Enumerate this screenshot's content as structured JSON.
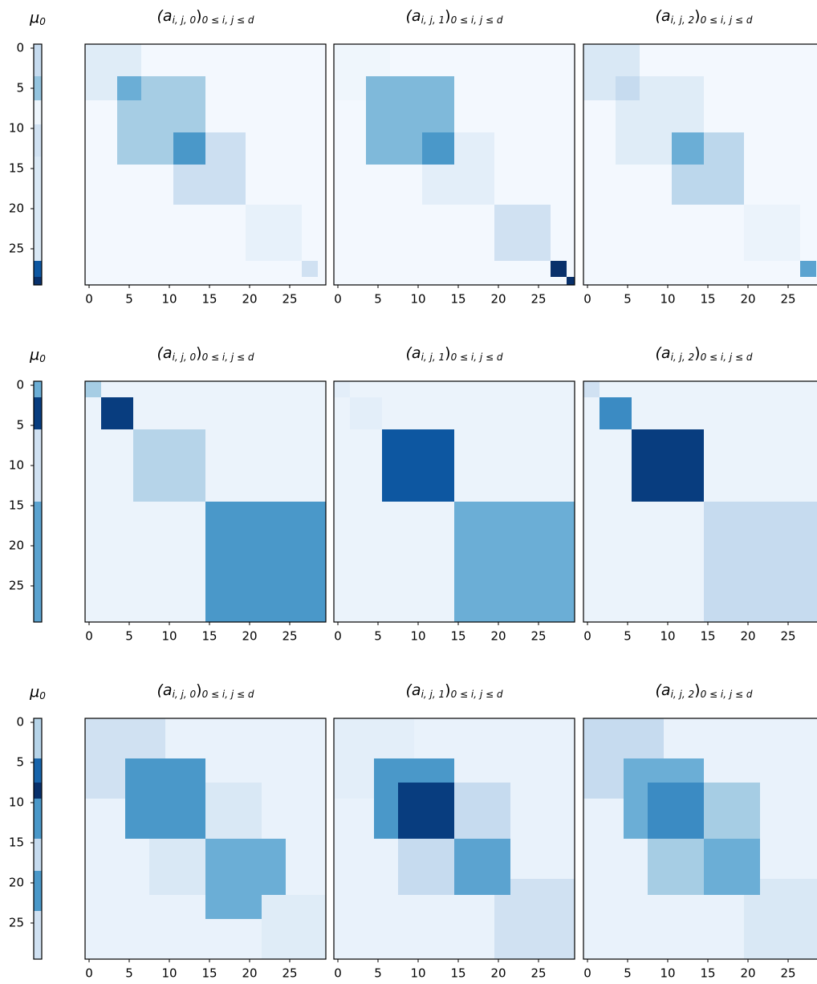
{
  "chart_data": [
    {
      "type": "strip",
      "title_parts": [
        "μ",
        "0"
      ],
      "ylim": [
        -0.5,
        29.5
      ],
      "yticks": [
        0,
        5,
        10,
        15,
        20,
        25
      ],
      "values": [
        0.25,
        0.25,
        0.25,
        0.25,
        0.4,
        0.4,
        0.4,
        0.05,
        0.05,
        0.05,
        0.2,
        0.2,
        0.2,
        0.2,
        0.15,
        0.15,
        0.15,
        0.15,
        0.15,
        0.15,
        0.15,
        0.15,
        0.15,
        0.15,
        0.15,
        0.15,
        0.15,
        0.85,
        0.85,
        1.0
      ]
    },
    {
      "type": "heatmap",
      "title_parts": [
        "(a",
        "i, j, 0",
        ")",
        "0 ≤ i, j ≤ d"
      ],
      "xlim": [
        -0.5,
        29.5
      ],
      "xticks": [
        0,
        5,
        10,
        15,
        20,
        25
      ],
      "blocks": [
        {
          "rows": [
            0,
            29
          ],
          "cols": [
            0,
            29
          ],
          "value": 0.02
        },
        {
          "rows": [
            0,
            6
          ],
          "cols": [
            0,
            6
          ],
          "value": 0.12
        },
        {
          "rows": [
            4,
            14
          ],
          "cols": [
            4,
            14
          ],
          "value": 0.35
        },
        {
          "rows": [
            4,
            6
          ],
          "cols": [
            4,
            6
          ],
          "value": 0.5
        },
        {
          "rows": [
            11,
            19
          ],
          "cols": [
            11,
            19
          ],
          "value": 0.22
        },
        {
          "rows": [
            11,
            14
          ],
          "cols": [
            11,
            14
          ],
          "value": 0.6
        },
        {
          "rows": [
            20,
            26
          ],
          "cols": [
            20,
            26
          ],
          "value": 0.08
        },
        {
          "rows": [
            27,
            28
          ],
          "cols": [
            27,
            28
          ],
          "value": 0.2
        }
      ]
    },
    {
      "type": "heatmap",
      "title_parts": [
        "(a",
        "i, j, 1",
        ")",
        "0 ≤ i, j ≤ d"
      ],
      "xlim": [
        -0.5,
        29.5
      ],
      "xticks": [
        0,
        5,
        10,
        15,
        20,
        25
      ],
      "blocks": [
        {
          "rows": [
            0,
            29
          ],
          "cols": [
            0,
            29
          ],
          "value": 0.02
        },
        {
          "rows": [
            0,
            6
          ],
          "cols": [
            0,
            6
          ],
          "value": 0.04
        },
        {
          "rows": [
            4,
            14
          ],
          "cols": [
            4,
            14
          ],
          "value": 0.45
        },
        {
          "rows": [
            11,
            19
          ],
          "cols": [
            11,
            19
          ],
          "value": 0.1
        },
        {
          "rows": [
            11,
            14
          ],
          "cols": [
            11,
            14
          ],
          "value": 0.6
        },
        {
          "rows": [
            20,
            26
          ],
          "cols": [
            20,
            26
          ],
          "value": 0.2
        },
        {
          "rows": [
            27,
            28
          ],
          "cols": [
            27,
            28
          ],
          "value": 1.0
        },
        {
          "rows": [
            29,
            29
          ],
          "cols": [
            29,
            29
          ],
          "value": 1.0
        }
      ]
    },
    {
      "type": "heatmap",
      "title_parts": [
        "(a",
        "i, j, 2",
        ")",
        "0 ≤ i, j ≤ d"
      ],
      "xlim": [
        -0.5,
        29.5
      ],
      "xticks": [
        0,
        5,
        10,
        15,
        20,
        25
      ],
      "blocks": [
        {
          "rows": [
            0,
            29
          ],
          "cols": [
            0,
            29
          ],
          "value": 0.02
        },
        {
          "rows": [
            0,
            6
          ],
          "cols": [
            0,
            6
          ],
          "value": 0.15
        },
        {
          "rows": [
            4,
            14
          ],
          "cols": [
            4,
            14
          ],
          "value": 0.12
        },
        {
          "rows": [
            4,
            6
          ],
          "cols": [
            4,
            6
          ],
          "value": 0.25
        },
        {
          "rows": [
            11,
            19
          ],
          "cols": [
            11,
            19
          ],
          "value": 0.28
        },
        {
          "rows": [
            11,
            14
          ],
          "cols": [
            11,
            14
          ],
          "value": 0.5
        },
        {
          "rows": [
            20,
            26
          ],
          "cols": [
            20,
            26
          ],
          "value": 0.06
        },
        {
          "rows": [
            27,
            28
          ],
          "cols": [
            27,
            28
          ],
          "value": 0.55
        }
      ]
    },
    {
      "type": "strip",
      "title_parts": [
        "μ",
        "0"
      ],
      "ylim": [
        -0.5,
        29.5
      ],
      "yticks": [
        0,
        5,
        10,
        15,
        20,
        25
      ],
      "values": [
        0.5,
        0.5,
        0.95,
        0.95,
        0.95,
        0.95,
        0.2,
        0.2,
        0.2,
        0.2,
        0.2,
        0.2,
        0.2,
        0.2,
        0.2,
        0.55,
        0.55,
        0.55,
        0.55,
        0.55,
        0.55,
        0.55,
        0.55,
        0.55,
        0.55,
        0.55,
        0.55,
        0.55,
        0.55,
        0.55
      ]
    },
    {
      "type": "heatmap",
      "title_parts": [
        "(a",
        "i, j, 0",
        ")",
        "0 ≤ i, j ≤ d"
      ],
      "xlim": [
        -0.5,
        29.5
      ],
      "xticks": [
        0,
        5,
        10,
        15,
        20,
        25
      ],
      "blocks": [
        {
          "rows": [
            0,
            29
          ],
          "cols": [
            0,
            29
          ],
          "value": 0.06
        },
        {
          "rows": [
            0,
            1
          ],
          "cols": [
            0,
            1
          ],
          "value": 0.35
        },
        {
          "rows": [
            2,
            5
          ],
          "cols": [
            2,
            5
          ],
          "value": 0.95
        },
        {
          "rows": [
            6,
            14
          ],
          "cols": [
            6,
            14
          ],
          "value": 0.3
        },
        {
          "rows": [
            15,
            29
          ],
          "cols": [
            15,
            29
          ],
          "value": 0.6
        }
      ]
    },
    {
      "type": "heatmap",
      "title_parts": [
        "(a",
        "i, j, 1",
        ")",
        "0 ≤ i, j ≤ d"
      ],
      "xlim": [
        -0.5,
        29.5
      ],
      "xticks": [
        0,
        5,
        10,
        15,
        20,
        25
      ],
      "blocks": [
        {
          "rows": [
            0,
            29
          ],
          "cols": [
            0,
            29
          ],
          "value": 0.06
        },
        {
          "rows": [
            0,
            1
          ],
          "cols": [
            0,
            1
          ],
          "value": 0.1
        },
        {
          "rows": [
            2,
            5
          ],
          "cols": [
            2,
            5
          ],
          "value": 0.1
        },
        {
          "rows": [
            6,
            14
          ],
          "cols": [
            6,
            14
          ],
          "value": 0.85
        },
        {
          "rows": [
            15,
            29
          ],
          "cols": [
            15,
            29
          ],
          "value": 0.5
        }
      ]
    },
    {
      "type": "heatmap",
      "title_parts": [
        "(a",
        "i, j, 2",
        ")",
        "0 ≤ i, j ≤ d"
      ],
      "xlim": [
        -0.5,
        29.5
      ],
      "xticks": [
        0,
        5,
        10,
        15,
        20,
        25
      ],
      "blocks": [
        {
          "rows": [
            0,
            29
          ],
          "cols": [
            0,
            29
          ],
          "value": 0.06
        },
        {
          "rows": [
            0,
            1
          ],
          "cols": [
            0,
            1
          ],
          "value": 0.2
        },
        {
          "rows": [
            2,
            5
          ],
          "cols": [
            2,
            5
          ],
          "value": 0.65
        },
        {
          "rows": [
            6,
            14
          ],
          "cols": [
            6,
            14
          ],
          "value": 0.95
        },
        {
          "rows": [
            15,
            29
          ],
          "cols": [
            15,
            29
          ],
          "value": 0.25
        }
      ]
    },
    {
      "type": "strip",
      "title_parts": [
        "μ",
        "0"
      ],
      "ylim": [
        -0.5,
        29.5
      ],
      "yticks": [
        0,
        5,
        10,
        15,
        20,
        25
      ],
      "values": [
        0.3,
        0.3,
        0.3,
        0.3,
        0.3,
        0.8,
        0.8,
        0.8,
        1.0,
        1.0,
        0.6,
        0.6,
        0.6,
        0.6,
        0.6,
        0.25,
        0.25,
        0.25,
        0.25,
        0.6,
        0.6,
        0.6,
        0.6,
        0.6,
        0.2,
        0.2,
        0.2,
        0.2,
        0.2,
        0.2
      ]
    },
    {
      "type": "heatmap",
      "title_parts": [
        "(a",
        "i, j, 0",
        ")",
        "0 ≤ i, j ≤ d"
      ],
      "xlim": [
        -0.5,
        29.5
      ],
      "xticks": [
        0,
        5,
        10,
        15,
        20,
        25
      ],
      "blocks": [
        {
          "rows": [
            0,
            29
          ],
          "cols": [
            0,
            29
          ],
          "value": 0.07
        },
        {
          "rows": [
            0,
            9
          ],
          "cols": [
            0,
            9
          ],
          "value": 0.2
        },
        {
          "rows": [
            5,
            14
          ],
          "cols": [
            5,
            14
          ],
          "value": 0.6
        },
        {
          "rows": [
            8,
            14
          ],
          "cols": [
            15,
            21
          ],
          "value": 0.15
        },
        {
          "rows": [
            15,
            21
          ],
          "cols": [
            8,
            14
          ],
          "value": 0.15
        },
        {
          "rows": [
            15,
            24
          ],
          "cols": [
            15,
            24
          ],
          "value": 0.5
        },
        {
          "rows": [
            22,
            29
          ],
          "cols": [
            22,
            29
          ],
          "value": 0.12
        }
      ]
    },
    {
      "type": "heatmap",
      "title_parts": [
        "(a",
        "i, j, 1",
        ")",
        "0 ≤ i, j ≤ d"
      ],
      "xlim": [
        -0.5,
        29.5
      ],
      "xticks": [
        0,
        5,
        10,
        15,
        20,
        25
      ],
      "blocks": [
        {
          "rows": [
            0,
            29
          ],
          "cols": [
            0,
            29
          ],
          "value": 0.07
        },
        {
          "rows": [
            0,
            9
          ],
          "cols": [
            0,
            9
          ],
          "value": 0.1
        },
        {
          "rows": [
            5,
            14
          ],
          "cols": [
            5,
            14
          ],
          "value": 0.6
        },
        {
          "rows": [
            8,
            14
          ],
          "cols": [
            8,
            14
          ],
          "value": 0.95
        },
        {
          "rows": [
            8,
            14
          ],
          "cols": [
            15,
            21
          ],
          "value": 0.25
        },
        {
          "rows": [
            15,
            21
          ],
          "cols": [
            8,
            14
          ],
          "value": 0.25
        },
        {
          "rows": [
            15,
            21
          ],
          "cols": [
            15,
            21
          ],
          "value": 0.55
        },
        {
          "rows": [
            22,
            29
          ],
          "cols": [
            20,
            29
          ],
          "value": 0.2
        },
        {
          "rows": [
            20,
            29
          ],
          "cols": [
            22,
            29
          ],
          "value": 0.2
        }
      ]
    },
    {
      "type": "heatmap",
      "title_parts": [
        "(a",
        "i, j, 2",
        ")",
        "0 ≤ i, j ≤ d"
      ],
      "xlim": [
        -0.5,
        29.5
      ],
      "xticks": [
        0,
        5,
        10,
        15,
        20,
        25
      ],
      "blocks": [
        {
          "rows": [
            0,
            29
          ],
          "cols": [
            0,
            29
          ],
          "value": 0.07
        },
        {
          "rows": [
            0,
            9
          ],
          "cols": [
            0,
            9
          ],
          "value": 0.25
        },
        {
          "rows": [
            5,
            14
          ],
          "cols": [
            5,
            14
          ],
          "value": 0.5
        },
        {
          "rows": [
            8,
            14
          ],
          "cols": [
            8,
            14
          ],
          "value": 0.65
        },
        {
          "rows": [
            8,
            14
          ],
          "cols": [
            15,
            21
          ],
          "value": 0.35
        },
        {
          "rows": [
            15,
            21
          ],
          "cols": [
            8,
            14
          ],
          "value": 0.35
        },
        {
          "rows": [
            15,
            21
          ],
          "cols": [
            15,
            21
          ],
          "value": 0.5
        },
        {
          "rows": [
            22,
            29
          ],
          "cols": [
            20,
            29
          ],
          "value": 0.15
        },
        {
          "rows": [
            20,
            29
          ],
          "cols": [
            22,
            29
          ],
          "value": 0.15
        }
      ]
    }
  ]
}
